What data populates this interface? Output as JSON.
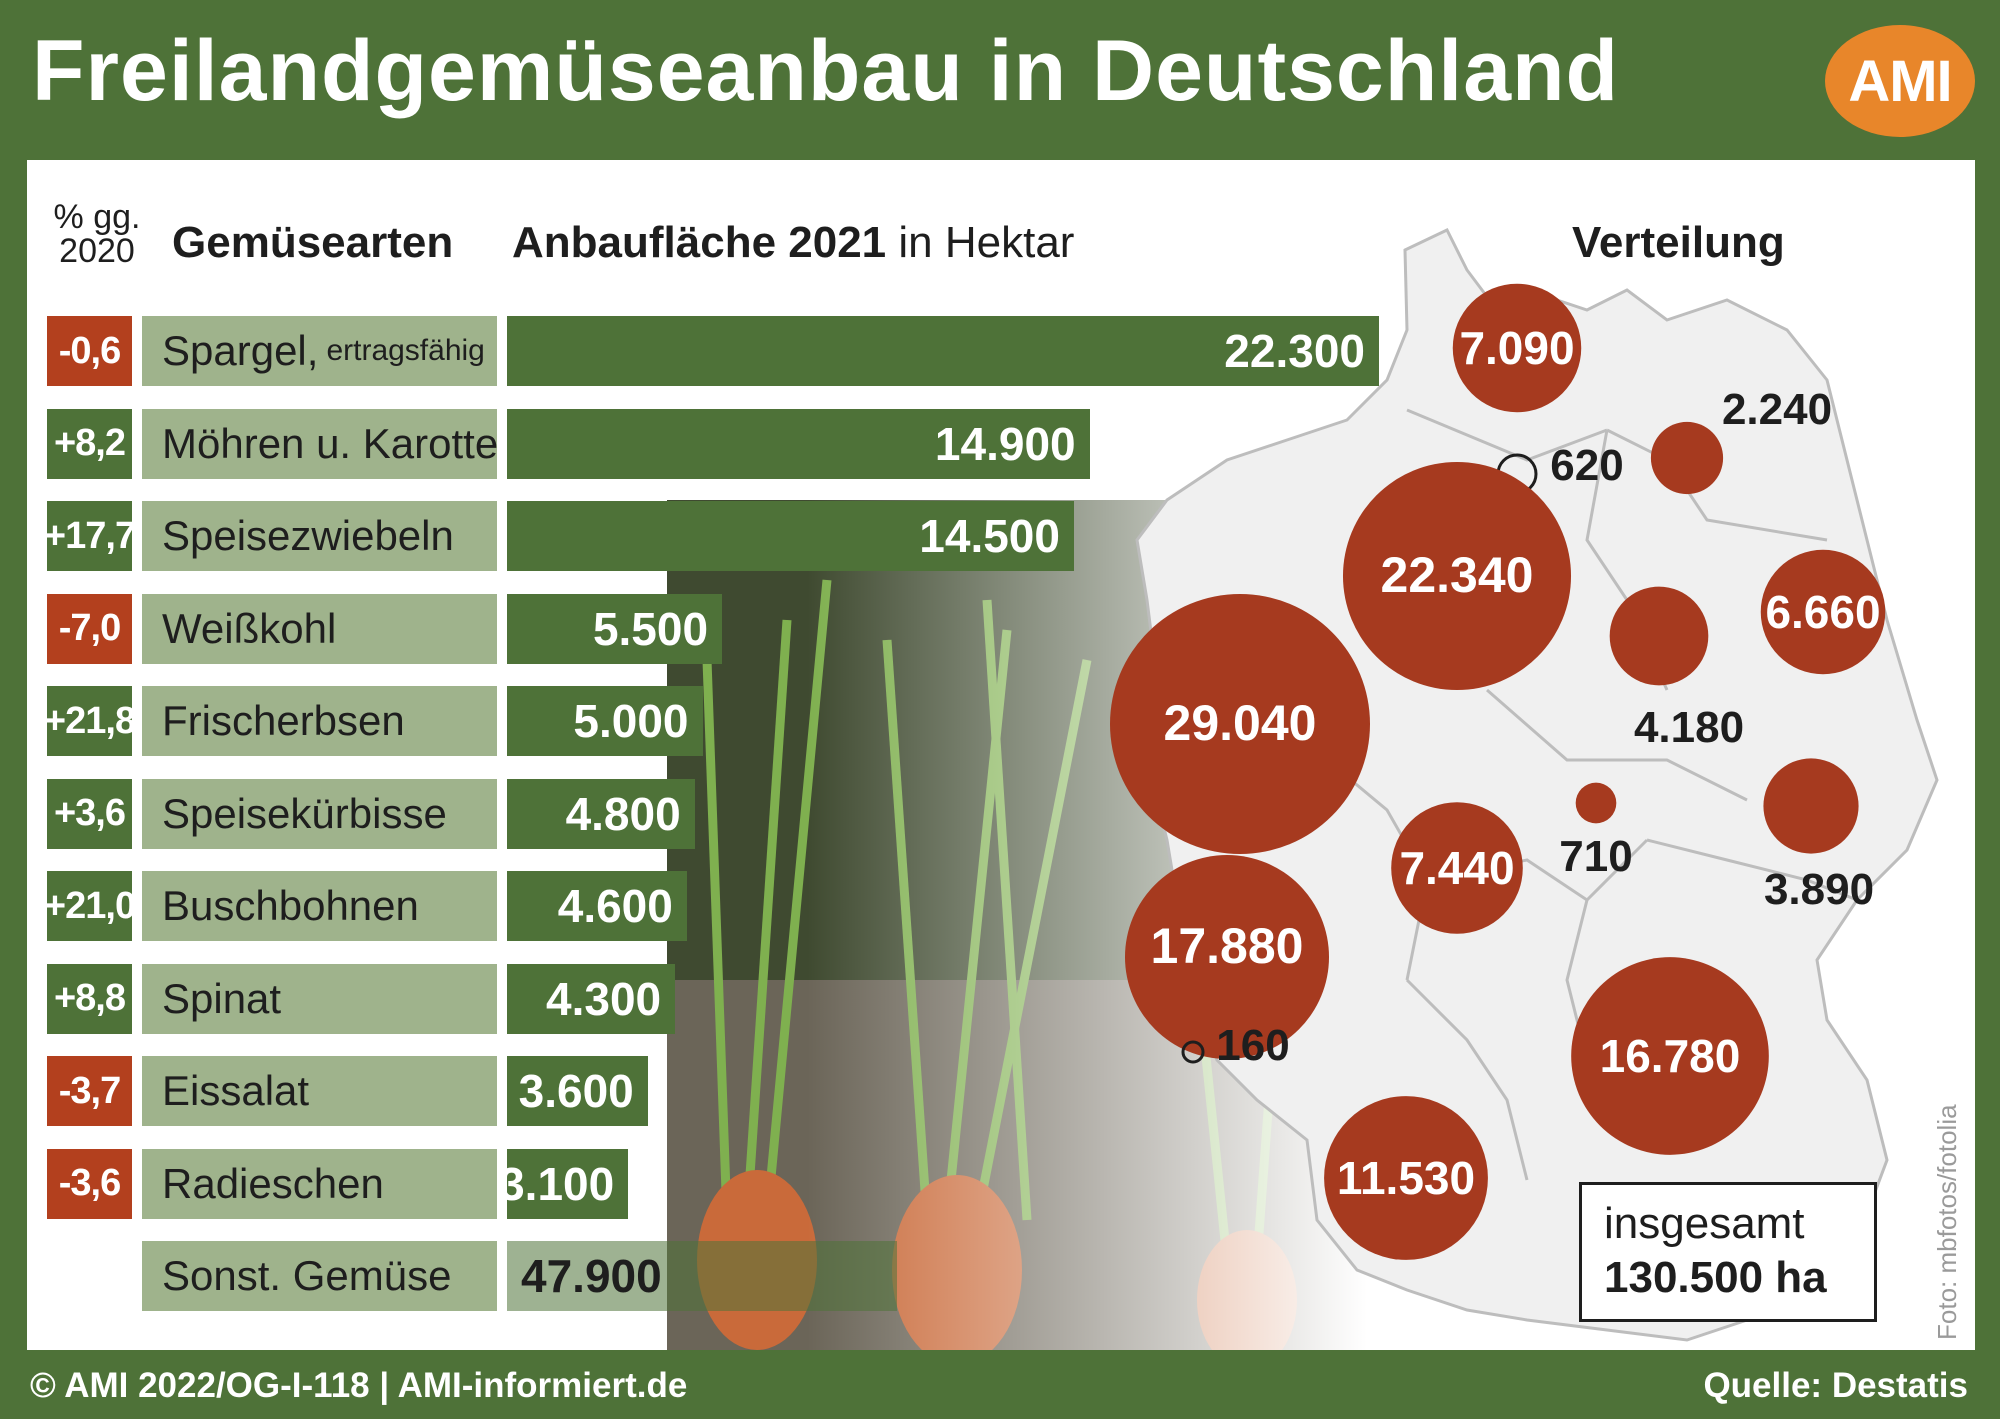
{
  "title": "Freilandgemüseanbau in Deutschland",
  "logo_text": "AMI",
  "footer_left": "© AMI 2022/OG-I-118 | AMI-informiert.de",
  "footer_right": "Quelle: Destatis",
  "photo_credit": "Foto: mbfotos/fotolia",
  "headers": {
    "pct_line1": "% gg.",
    "pct_line2": "2020",
    "category": "Gemüsearten",
    "area_bold": "Anbaufläche 2021",
    "area_unit": "in Hektar",
    "distribution": "Verteilung"
  },
  "total": {
    "label": "insgesamt",
    "value": "130.500 ha"
  },
  "colors": {
    "green": "#4e7238",
    "red": "#b3401e",
    "light_green": "#9fb38c",
    "bubble": "#a63a1f",
    "orange": "#e8862a"
  },
  "chart_data": [
    {
      "type": "bar",
      "orientation": "horizontal",
      "unit": "Hektar",
      "categories": [
        {
          "name": "Spargel,",
          "note": "ertragsfähig",
          "value": 22300,
          "label": "22.300",
          "change": "-0,6",
          "sign": "neg"
        },
        {
          "name": "Möhren u. Karotten",
          "value": 14900,
          "label": "14.900",
          "change": "+8,2",
          "sign": "pos"
        },
        {
          "name": "Speisezwiebeln",
          "value": 14500,
          "label": "14.500",
          "change": "+17,7",
          "sign": "pos"
        },
        {
          "name": "Weißkohl",
          "value": 5500,
          "label": "5.500",
          "change": "-7,0",
          "sign": "neg"
        },
        {
          "name": "Frischerbsen",
          "value": 5000,
          "label": "5.000",
          "change": "+21,8",
          "sign": "pos"
        },
        {
          "name": "Speisekürbisse",
          "value": 4800,
          "label": "4.800",
          "change": "+3,6",
          "sign": "pos"
        },
        {
          "name": "Buschbohnen",
          "value": 4600,
          "label": "4.600",
          "change": "+21,0",
          "sign": "pos"
        },
        {
          "name": "Spinat",
          "value": 4300,
          "label": "4.300",
          "change": "+8,8",
          "sign": "pos"
        },
        {
          "name": "Eissalat",
          "value": 3600,
          "label": "3.600",
          "change": "-3,7",
          "sign": "neg"
        },
        {
          "name": "Radieschen",
          "value": 3100,
          "label": "3.100",
          "change": "-3,6",
          "sign": "neg"
        }
      ],
      "other": {
        "name": "Sonst. Gemüse",
        "value": 47900,
        "label": "47.900"
      }
    },
    {
      "type": "bubble-map",
      "regions": [
        {
          "label": "7.090",
          "value": 7090
        },
        {
          "label": "2.240",
          "value": 2240
        },
        {
          "label": "620",
          "value": 620
        },
        {
          "label": "22.340",
          "value": 22340
        },
        {
          "label": "6.660",
          "value": 6660
        },
        {
          "label": "4.180",
          "value": 4180
        },
        {
          "label": "29.040",
          "value": 29040
        },
        {
          "label": "710",
          "value": 710
        },
        {
          "label": "3.890",
          "value": 3890
        },
        {
          "label": "7.440",
          "value": 7440
        },
        {
          "label": "17.880",
          "value": 17880
        },
        {
          "label": "160",
          "value": 160
        },
        {
          "label": "16.780",
          "value": 16780
        },
        {
          "label": "11.530",
          "value": 11530
        }
      ]
    }
  ]
}
